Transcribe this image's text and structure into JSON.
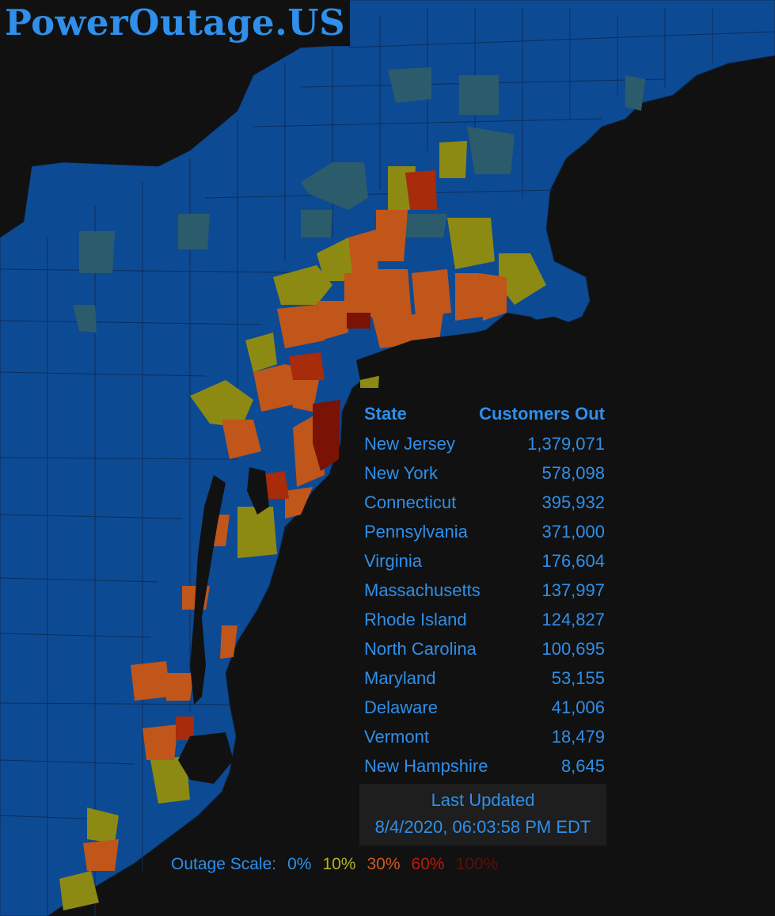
{
  "site_title": "PowerOutage.US",
  "table": {
    "header_state": "State",
    "header_customers": "Customers Out",
    "rows": [
      {
        "state": "New Jersey",
        "customers": "1,379,071"
      },
      {
        "state": "New York",
        "customers": "578,098"
      },
      {
        "state": "Connecticut",
        "customers": "395,932"
      },
      {
        "state": "Pennsylvania",
        "customers": "371,000"
      },
      {
        "state": "Virginia",
        "customers": "176,604"
      },
      {
        "state": "Massachusetts",
        "customers": "137,997"
      },
      {
        "state": "Rhode Island",
        "customers": "124,827"
      },
      {
        "state": "North Carolina",
        "customers": "100,695"
      },
      {
        "state": "Maryland",
        "customers": "53,155"
      },
      {
        "state": "Delaware",
        "customers": "41,006"
      },
      {
        "state": "Vermont",
        "customers": "18,479"
      },
      {
        "state": "New Hampshire",
        "customers": "8,645"
      }
    ]
  },
  "last_updated": {
    "label": "Last Updated",
    "timestamp": "8/4/2020, 06:03:58 PM EDT"
  },
  "scale": {
    "label": "Outage Scale:",
    "stops": [
      {
        "text": "0%",
        "color": "#2f8fea"
      },
      {
        "text": "10%",
        "color": "#b7b21c"
      },
      {
        "text": "30%",
        "color": "#cf5a1e"
      },
      {
        "text": "60%",
        "color": "#b51d0e"
      },
      {
        "text": "100%",
        "color": "#5a1008"
      }
    ]
  },
  "colors": {
    "background": "#111111",
    "accent": "#2f8fea",
    "county_0": "#0d4a94",
    "county_teal": "#2c5c6c",
    "county_10": "#8d8a14",
    "county_30": "#c0561a",
    "county_60": "#a82b0c",
    "county_100": "#7a1206"
  }
}
